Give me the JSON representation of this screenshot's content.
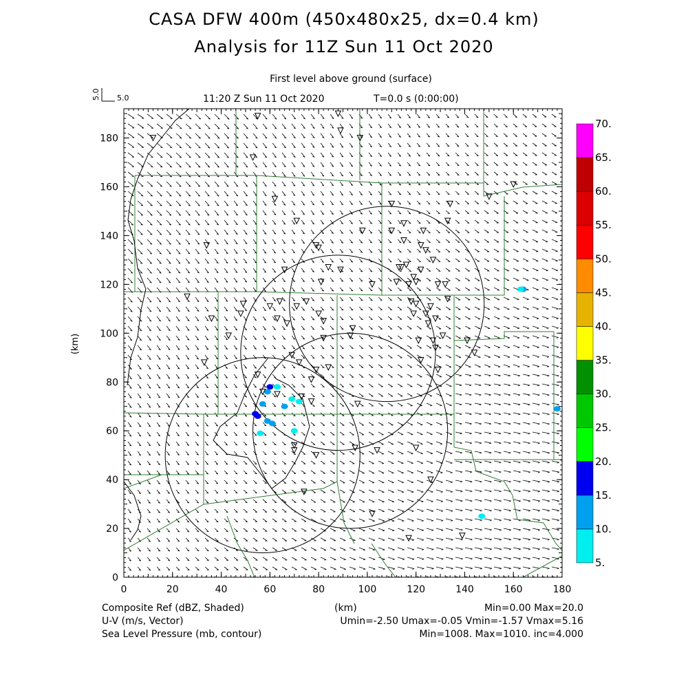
{
  "title": {
    "line1": "CASA DFW 400m (450x480x25, dx=0.4 km)",
    "line2": "Analysis for 11Z Sun 11 Oct 2020"
  },
  "subtitle": {
    "level": "First level above ground (surface)",
    "time": "11:20 Z Sun 11 Oct 2020",
    "elapsed": "T=0.0 s (0:00:00)"
  },
  "vector_scale": {
    "vertical_label": "5.0",
    "horizontal_label": "5.0"
  },
  "axes": {
    "x_label": "(km)",
    "y_label": "(km)",
    "x_ticks": [
      "0",
      "20",
      "40",
      "60",
      "80",
      "100",
      "120",
      "140",
      "160",
      "180"
    ],
    "y_ticks": [
      "0",
      "20",
      "40",
      "60",
      "80",
      "100",
      "120",
      "140",
      "160",
      "180"
    ],
    "x_range": [
      0,
      180
    ],
    "y_range": [
      0,
      192
    ]
  },
  "colorbar": {
    "labels": [
      "5.",
      "10.",
      "15.",
      "20.",
      "25.",
      "30.",
      "35.",
      "40.",
      "45.",
      "50.",
      "55.",
      "60.",
      "65.",
      "70."
    ],
    "colors": [
      "#00eeee",
      "#00a0f0",
      "#0000f0",
      "#00ff00",
      "#00c800",
      "#009000",
      "#ffff00",
      "#e6b400",
      "#ff8c00",
      "#ff0000",
      "#dc0000",
      "#c00000",
      "#ff00ff"
    ]
  },
  "footer": {
    "left": [
      "Composite Ref (dBZ, Shaded)",
      "U-V (m/s, Vector)",
      "Sea Level Pressure (mb, contour)"
    ],
    "right": [
      "Min=0.00 Max=20.0",
      "Umin=-2.50 Umax=-0.05 Vmin=-1.57 Vmax=5.16",
      "Min=1008. Max=1010. inc=4.000"
    ],
    "center": "(km)"
  },
  "chart_data": {
    "type": "map",
    "fields": [
      "Composite reflectivity (dBZ, shaded)",
      "U-V wind (m/s, vector)",
      "Sea level pressure (mb, contour)"
    ],
    "reflectivity_range": [
      0.0,
      20.0
    ],
    "u_range": [
      -2.5,
      -0.05
    ],
    "v_range": [
      -1.57,
      5.16
    ],
    "pressure_range": [
      1008,
      1010
    ],
    "pressure_increment": 4.0,
    "radar_range_rings_km": [
      {
        "cx": 108,
        "cy": 112,
        "r": 40
      },
      {
        "cx": 88,
        "cy": 92,
        "r": 40
      },
      {
        "cx": 93,
        "cy": 60,
        "r": 40
      },
      {
        "cx": 57,
        "cy": 50,
        "r": 40
      }
    ],
    "echoes_km": [
      {
        "x": 54,
        "y": 67,
        "dbz": 15
      },
      {
        "x": 55,
        "y": 66,
        "dbz": 15
      },
      {
        "x": 60,
        "y": 78,
        "dbz": 15
      },
      {
        "x": 59,
        "y": 76,
        "dbz": 10
      },
      {
        "x": 63,
        "y": 78,
        "dbz": 10
      },
      {
        "x": 57,
        "y": 71,
        "dbz": 10
      },
      {
        "x": 59,
        "y": 64,
        "dbz": 10
      },
      {
        "x": 61,
        "y": 63,
        "dbz": 10
      },
      {
        "x": 66,
        "y": 70,
        "dbz": 10
      },
      {
        "x": 69,
        "y": 73,
        "dbz": 5
      },
      {
        "x": 72,
        "y": 72,
        "dbz": 5
      },
      {
        "x": 56,
        "y": 59,
        "dbz": 5
      },
      {
        "x": 70,
        "y": 60,
        "dbz": 5
      },
      {
        "x": 63,
        "y": 78,
        "dbz": 5
      },
      {
        "x": 164,
        "y": 118,
        "dbz": 10
      },
      {
        "x": 163,
        "y": 118,
        "dbz": 5
      },
      {
        "x": 178,
        "y": 69,
        "dbz": 10
      },
      {
        "x": 147,
        "y": 25,
        "dbz": 5
      }
    ],
    "stations_km": [
      [
        55,
        189
      ],
      [
        88,
        190
      ],
      [
        89,
        183
      ],
      [
        97,
        180
      ],
      [
        12,
        180
      ],
      [
        53,
        172
      ],
      [
        160,
        161
      ],
      [
        150,
        156
      ],
      [
        62,
        155
      ],
      [
        110,
        153
      ],
      [
        134,
        153
      ],
      [
        115,
        145
      ],
      [
        71,
        146
      ],
      [
        133,
        146
      ],
      [
        98,
        142
      ],
      [
        110,
        142
      ],
      [
        123,
        142
      ],
      [
        115,
        138
      ],
      [
        34,
        136
      ],
      [
        79,
        136
      ],
      [
        80,
        135
      ],
      [
        122,
        136
      ],
      [
        124,
        134
      ],
      [
        127,
        130
      ],
      [
        113,
        127
      ],
      [
        114,
        127
      ],
      [
        116,
        128
      ],
      [
        122,
        126
      ],
      [
        66,
        126
      ],
      [
        84,
        127
      ],
      [
        89,
        126
      ],
      [
        119,
        123
      ],
      [
        120,
        121
      ],
      [
        112,
        121
      ],
      [
        117,
        120
      ],
      [
        129,
        120
      ],
      [
        132,
        120
      ],
      [
        102,
        120
      ],
      [
        81,
        121
      ],
      [
        75,
        113
      ],
      [
        64,
        113
      ],
      [
        71,
        111
      ],
      [
        118,
        113
      ],
      [
        120,
        112
      ],
      [
        126,
        111
      ],
      [
        133,
        114
      ],
      [
        26,
        115
      ],
      [
        49,
        112
      ],
      [
        60,
        111
      ],
      [
        80,
        108
      ],
      [
        119,
        108
      ],
      [
        124,
        108
      ],
      [
        128,
        106
      ],
      [
        36,
        106
      ],
      [
        48,
        108
      ],
      [
        63,
        106
      ],
      [
        67,
        104
      ],
      [
        82,
        105
      ],
      [
        125,
        104
      ],
      [
        94,
        102
      ],
      [
        43,
        99
      ],
      [
        82,
        98
      ],
      [
        93,
        99
      ],
      [
        121,
        97
      ],
      [
        127,
        97
      ],
      [
        131,
        99
      ],
      [
        141,
        97
      ],
      [
        144,
        92
      ],
      [
        128,
        94
      ],
      [
        33,
        88
      ],
      [
        69,
        91
      ],
      [
        84,
        86
      ],
      [
        72,
        88
      ],
      [
        79,
        85
      ],
      [
        122,
        89
      ],
      [
        129,
        85
      ],
      [
        55,
        83
      ],
      [
        77,
        81
      ],
      [
        57,
        76
      ],
      [
        63,
        75
      ],
      [
        73,
        74
      ],
      [
        77,
        72
      ],
      [
        96,
        71
      ],
      [
        70,
        54
      ],
      [
        70,
        52
      ],
      [
        79,
        50
      ],
      [
        95,
        53
      ],
      [
        104,
        52
      ],
      [
        120,
        53
      ],
      [
        126,
        40
      ],
      [
        74,
        35
      ],
      [
        102,
        26
      ],
      [
        117,
        16
      ],
      [
        139,
        17
      ]
    ]
  }
}
